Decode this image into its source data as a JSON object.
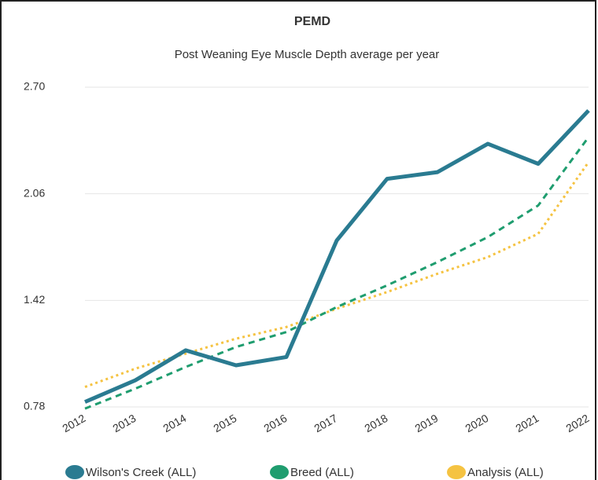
{
  "chart_data": {
    "type": "line",
    "title": "PEMD",
    "subtitle": "Post Weaning Eye Muscle Depth average per year",
    "categories": [
      "2012",
      "2013",
      "2014",
      "2015",
      "2016",
      "2017",
      "2018",
      "2019",
      "2020",
      "2021",
      "2022"
    ],
    "series": [
      {
        "name": "Wilson's Creek (ALL)",
        "color": "#2a7b91",
        "style": "solid",
        "values": [
          0.81,
          0.94,
          1.12,
          1.03,
          1.08,
          1.78,
          2.15,
          2.19,
          2.36,
          2.24,
          2.56
        ]
      },
      {
        "name": "Breed (ALL)",
        "color": "#1f9d6f",
        "style": "dashed",
        "values": [
          0.77,
          0.89,
          1.02,
          1.14,
          1.23,
          1.38,
          1.51,
          1.65,
          1.8,
          1.99,
          2.4
        ]
      },
      {
        "name": "Analysis (ALL)",
        "color": "#f5c342",
        "style": "dotted",
        "values": [
          0.9,
          1.01,
          1.1,
          1.19,
          1.26,
          1.37,
          1.47,
          1.58,
          1.68,
          1.82,
          2.25
        ]
      }
    ],
    "ylim": [
      0.78,
      2.7
    ],
    "yticks": [
      0.78,
      1.42,
      2.06,
      2.7
    ],
    "ytick_labels": [
      "0.78",
      "1.42",
      "2.06",
      "2.70"
    ],
    "grid": true,
    "legend": "bottom"
  }
}
